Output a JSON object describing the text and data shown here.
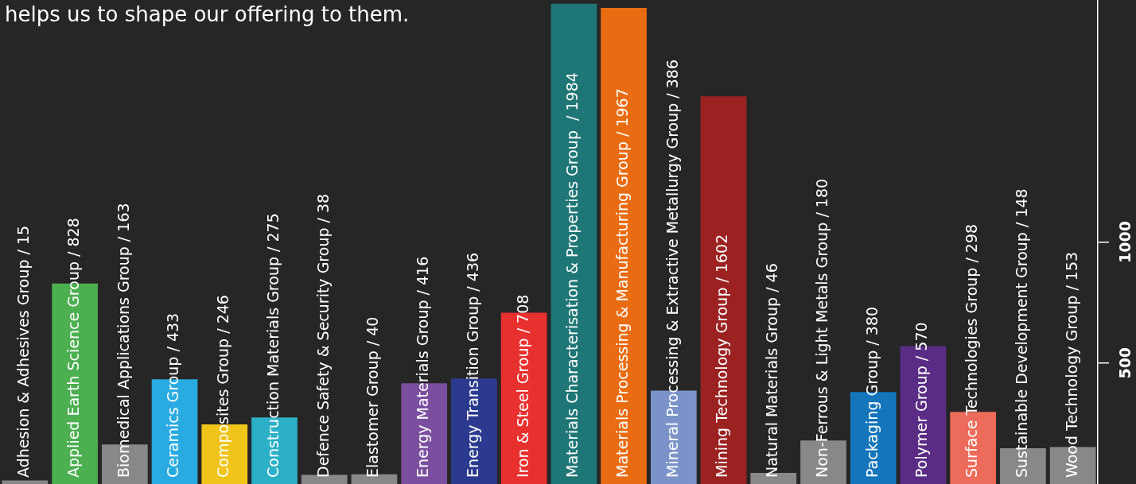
{
  "chart_data": {
    "type": "bar",
    "categories": [
      "Adhesion & Adhesives Group / 15",
      "Applied Earth Science Group / 828",
      "Biomedical Applications Group / 163",
      "Ceramics Group / 433",
      "Composites Group / 246",
      "Construction Materials Group / 275",
      "Defence Safety & Security Group / 38",
      "Elastomer Group / 40",
      "Energy Materials Group / 416",
      "Energy Transition Group / 436",
      "Iron & Steel Group / 708",
      "Materials Characterisation & Properties Group  / 1984",
      "Materials Processing & Manufacturing Group / 1967",
      "Mineral Processing & Extractive Metallurgy Group / 386",
      "Mining Technology Group / 1602",
      "Natural Materials Group / 46",
      "Non-Ferrous & Light Metals Group / 180",
      "Packaging Group / 380",
      "Polymer Group / 570",
      "Surface Technologies Group / 298",
      "Sustainable Development Group / 148",
      "Wood Technology Group / 153"
    ],
    "values": [
      15,
      828,
      163,
      433,
      246,
      275,
      38,
      40,
      416,
      436,
      708,
      1984,
      1967,
      386,
      1602,
      46,
      180,
      380,
      570,
      298,
      148,
      153
    ],
    "colors": [
      "#888888",
      "#4caf50",
      "#888888",
      "#29abe2",
      "#f0c419",
      "#2bb0c8",
      "#888888",
      "#888888",
      "#7b4fa0",
      "#2b3a8f",
      "#e8312f",
      "#1f7676",
      "#e96c12",
      "#7b93c9",
      "#9c2222",
      "#888888",
      "#888888",
      "#1475bb",
      "#5b2c86",
      "#ec6b5a",
      "#888888",
      "#888888"
    ],
    "ylim": [
      0,
      2000
    ],
    "yticks": [
      500,
      1000
    ],
    "grid": false,
    "annotations": [
      "helps us to shape our offering to them."
    ]
  }
}
